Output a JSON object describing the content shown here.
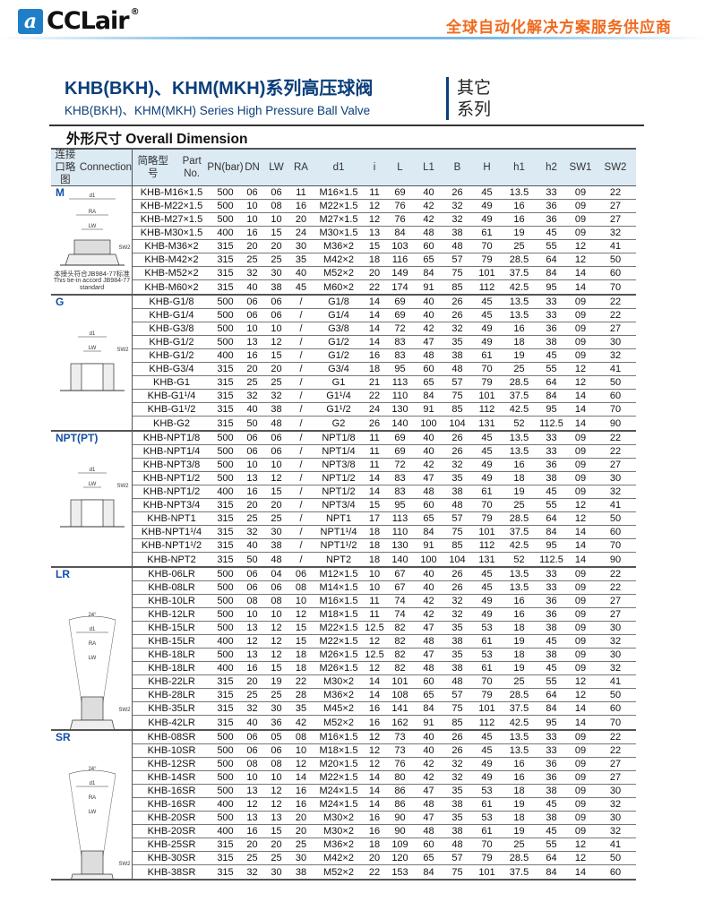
{
  "header": {
    "logo_mark": "a",
    "logo_text": "CCLair",
    "logo_reg": "®",
    "slogan": "全球自动化解决方案服务供应商"
  },
  "title": "KHB(BKH)、KHM(MKH)系列高压球阀",
  "subtitle": "KHB(BKH)、KHM(MKH) Series High Pressure Ball Valve",
  "series_tag": [
    "其它",
    "系列"
  ],
  "section_title": "外形尺寸 Overall Dimension",
  "columns": [
    [
      "连接口略图",
      "Connection"
    ],
    [
      "简略型号",
      "Part No."
    ],
    [
      "PN",
      "(bar)"
    ],
    [
      "DN"
    ],
    [
      "LW"
    ],
    [
      "RA"
    ],
    [
      "d1"
    ],
    [
      "i"
    ],
    [
      "L"
    ],
    [
      "L1"
    ],
    [
      "B"
    ],
    [
      "H"
    ],
    [
      "h1"
    ],
    [
      "h2"
    ],
    [
      "SW1"
    ],
    [
      "SW2"
    ]
  ],
  "groups": [
    {
      "label": "M",
      "note": [
        "本接头符合JB984-77标准",
        "This tie-in accord JB984-77",
        "standard"
      ],
      "rows": [
        [
          "KHB-M16×1.5",
          "500",
          "06",
          "06",
          "11",
          "M16×1.5",
          "11",
          "69",
          "40",
          "26",
          "45",
          "13.5",
          "33",
          "09",
          "22"
        ],
        [
          "KHB-M22×1.5",
          "500",
          "10",
          "08",
          "16",
          "M22×1.5",
          "12",
          "76",
          "42",
          "32",
          "49",
          "16",
          "36",
          "09",
          "27"
        ],
        [
          "KHB-M27×1.5",
          "500",
          "10",
          "10",
          "20",
          "M27×1.5",
          "12",
          "76",
          "42",
          "32",
          "49",
          "16",
          "36",
          "09",
          "27"
        ],
        [
          "KHB-M30×1.5",
          "400",
          "16",
          "15",
          "24",
          "M30×1.5",
          "13",
          "84",
          "48",
          "38",
          "61",
          "19",
          "45",
          "09",
          "32"
        ],
        [
          "KHB-M36×2",
          "315",
          "20",
          "20",
          "30",
          "M36×2",
          "15",
          "103",
          "60",
          "48",
          "70",
          "25",
          "55",
          "12",
          "41"
        ],
        [
          "KHB-M42×2",
          "315",
          "25",
          "25",
          "35",
          "M42×2",
          "18",
          "116",
          "65",
          "57",
          "79",
          "28.5",
          "64",
          "12",
          "50"
        ],
        [
          "KHB-M52×2",
          "315",
          "32",
          "30",
          "40",
          "M52×2",
          "20",
          "149",
          "84",
          "75",
          "101",
          "37.5",
          "84",
          "14",
          "60"
        ],
        [
          "KHB-M60×2",
          "315",
          "40",
          "38",
          "45",
          "M60×2",
          "22",
          "174",
          "91",
          "85",
          "112",
          "42.5",
          "95",
          "14",
          "70"
        ]
      ]
    },
    {
      "label": "G",
      "rows": [
        [
          "KHB-G1/8",
          "500",
          "06",
          "06",
          "/",
          "G1/8",
          "14",
          "69",
          "40",
          "26",
          "45",
          "13.5",
          "33",
          "09",
          "22"
        ],
        [
          "KHB-G1/4",
          "500",
          "06",
          "06",
          "/",
          "G1/4",
          "14",
          "69",
          "40",
          "26",
          "45",
          "13.5",
          "33",
          "09",
          "22"
        ],
        [
          "KHB-G3/8",
          "500",
          "10",
          "10",
          "/",
          "G3/8",
          "14",
          "72",
          "42",
          "32",
          "49",
          "16",
          "36",
          "09",
          "27"
        ],
        [
          "KHB-G1/2",
          "500",
          "13",
          "12",
          "/",
          "G1/2",
          "14",
          "83",
          "47",
          "35",
          "49",
          "18",
          "38",
          "09",
          "30"
        ],
        [
          "KHB-G1/2",
          "400",
          "16",
          "15",
          "/",
          "G1/2",
          "16",
          "83",
          "48",
          "38",
          "61",
          "19",
          "45",
          "09",
          "32"
        ],
        [
          "KHB-G3/4",
          "315",
          "20",
          "20",
          "/",
          "G3/4",
          "18",
          "95",
          "60",
          "48",
          "70",
          "25",
          "55",
          "12",
          "41"
        ],
        [
          "KHB-G1",
          "315",
          "25",
          "25",
          "/",
          "G1",
          "21",
          "113",
          "65",
          "57",
          "79",
          "28.5",
          "64",
          "12",
          "50"
        ],
        [
          "KHB-G1¹/4",
          "315",
          "32",
          "32",
          "/",
          "G1¹/4",
          "22",
          "110",
          "84",
          "75",
          "101",
          "37.5",
          "84",
          "14",
          "60"
        ],
        [
          "KHB-G1¹/2",
          "315",
          "40",
          "38",
          "/",
          "G1¹/2",
          "24",
          "130",
          "91",
          "85",
          "112",
          "42.5",
          "95",
          "14",
          "70"
        ],
        [
          "KHB-G2",
          "315",
          "50",
          "48",
          "/",
          "G2",
          "26",
          "140",
          "100",
          "104",
          "131",
          "52",
          "112.5",
          "14",
          "90"
        ]
      ]
    },
    {
      "label": "NPT(PT)",
      "rows": [
        [
          "KHB-NPT1/8",
          "500",
          "06",
          "06",
          "/",
          "NPT1/8",
          "11",
          "69",
          "40",
          "26",
          "45",
          "13.5",
          "33",
          "09",
          "22"
        ],
        [
          "KHB-NPT1/4",
          "500",
          "06",
          "06",
          "/",
          "NPT1/4",
          "11",
          "69",
          "40",
          "26",
          "45",
          "13.5",
          "33",
          "09",
          "22"
        ],
        [
          "KHB-NPT3/8",
          "500",
          "10",
          "10",
          "/",
          "NPT3/8",
          "11",
          "72",
          "42",
          "32",
          "49",
          "16",
          "36",
          "09",
          "27"
        ],
        [
          "KHB-NPT1/2",
          "500",
          "13",
          "12",
          "/",
          "NPT1/2",
          "14",
          "83",
          "47",
          "35",
          "49",
          "18",
          "38",
          "09",
          "30"
        ],
        [
          "KHB-NPT1/2",
          "400",
          "16",
          "15",
          "/",
          "NPT1/2",
          "14",
          "83",
          "48",
          "38",
          "61",
          "19",
          "45",
          "09",
          "32"
        ],
        [
          "KHB-NPT3/4",
          "315",
          "20",
          "20",
          "/",
          "NPT3/4",
          "15",
          "95",
          "60",
          "48",
          "70",
          "25",
          "55",
          "12",
          "41"
        ],
        [
          "KHB-NPT1",
          "315",
          "25",
          "25",
          "/",
          "NPT1",
          "17",
          "113",
          "65",
          "57",
          "79",
          "28.5",
          "64",
          "12",
          "50"
        ],
        [
          "KHB-NPT1¹/4",
          "315",
          "32",
          "30",
          "/",
          "NPT1¹/4",
          "18",
          "110",
          "84",
          "75",
          "101",
          "37.5",
          "84",
          "14",
          "60"
        ],
        [
          "KHB-NPT1¹/2",
          "315",
          "40",
          "38",
          "/",
          "NPT1¹/2",
          "18",
          "130",
          "91",
          "85",
          "112",
          "42.5",
          "95",
          "14",
          "70"
        ],
        [
          "KHB-NPT2",
          "315",
          "50",
          "48",
          "/",
          "NPT2",
          "18",
          "140",
          "100",
          "104",
          "131",
          "52",
          "112.5",
          "14",
          "90"
        ]
      ]
    },
    {
      "label": "LR",
      "rows": [
        [
          "KHB-06LR",
          "500",
          "06",
          "04",
          "06",
          "M12×1.5",
          "10",
          "67",
          "40",
          "26",
          "45",
          "13.5",
          "33",
          "09",
          "22"
        ],
        [
          "KHB-08LR",
          "500",
          "06",
          "06",
          "08",
          "M14×1.5",
          "10",
          "67",
          "40",
          "26",
          "45",
          "13.5",
          "33",
          "09",
          "22"
        ],
        [
          "KHB-10LR",
          "500",
          "08",
          "08",
          "10",
          "M16×1.5",
          "11",
          "74",
          "42",
          "32",
          "49",
          "16",
          "36",
          "09",
          "27"
        ],
        [
          "KHB-12LR",
          "500",
          "10",
          "10",
          "12",
          "M18×1.5",
          "11",
          "74",
          "42",
          "32",
          "49",
          "16",
          "36",
          "09",
          "27"
        ],
        [
          "KHB-15LR",
          "500",
          "13",
          "12",
          "15",
          "M22×1.5",
          "12.5",
          "82",
          "47",
          "35",
          "53",
          "18",
          "38",
          "09",
          "30"
        ],
        [
          "KHB-15LR",
          "400",
          "12",
          "12",
          "15",
          "M22×1.5",
          "12",
          "82",
          "48",
          "38",
          "61",
          "19",
          "45",
          "09",
          "32"
        ],
        [
          "KHB-18LR",
          "500",
          "13",
          "12",
          "18",
          "M26×1.5",
          "12.5",
          "82",
          "47",
          "35",
          "53",
          "18",
          "38",
          "09",
          "30"
        ],
        [
          "KHB-18LR",
          "400",
          "16",
          "15",
          "18",
          "M26×1.5",
          "12",
          "82",
          "48",
          "38",
          "61",
          "19",
          "45",
          "09",
          "32"
        ],
        [
          "KHB-22LR",
          "315",
          "20",
          "19",
          "22",
          "M30×2",
          "14",
          "101",
          "60",
          "48",
          "70",
          "25",
          "55",
          "12",
          "41"
        ],
        [
          "KHB-28LR",
          "315",
          "25",
          "25",
          "28",
          "M36×2",
          "14",
          "108",
          "65",
          "57",
          "79",
          "28.5",
          "64",
          "12",
          "50"
        ],
        [
          "KHB-35LR",
          "315",
          "32",
          "30",
          "35",
          "M45×2",
          "16",
          "141",
          "84",
          "75",
          "101",
          "37.5",
          "84",
          "14",
          "60"
        ],
        [
          "KHB-42LR",
          "315",
          "40",
          "36",
          "42",
          "M52×2",
          "16",
          "162",
          "91",
          "85",
          "112",
          "42.5",
          "95",
          "14",
          "70"
        ]
      ]
    },
    {
      "label": "SR",
      "rows": [
        [
          "KHB-08SR",
          "500",
          "06",
          "05",
          "08",
          "M16×1.5",
          "12",
          "73",
          "40",
          "26",
          "45",
          "13.5",
          "33",
          "09",
          "22"
        ],
        [
          "KHB-10SR",
          "500",
          "06",
          "06",
          "10",
          "M18×1.5",
          "12",
          "73",
          "40",
          "26",
          "45",
          "13.5",
          "33",
          "09",
          "22"
        ],
        [
          "KHB-12SR",
          "500",
          "08",
          "08",
          "12",
          "M20×1.5",
          "12",
          "76",
          "42",
          "32",
          "49",
          "16",
          "36",
          "09",
          "27"
        ],
        [
          "KHB-14SR",
          "500",
          "10",
          "10",
          "14",
          "M22×1.5",
          "14",
          "80",
          "42",
          "32",
          "49",
          "16",
          "36",
          "09",
          "27"
        ],
        [
          "KHB-16SR",
          "500",
          "13",
          "12",
          "16",
          "M24×1.5",
          "14",
          "86",
          "47",
          "35",
          "53",
          "18",
          "38",
          "09",
          "30"
        ],
        [
          "KHB-16SR",
          "400",
          "12",
          "12",
          "16",
          "M24×1.5",
          "14",
          "86",
          "48",
          "38",
          "61",
          "19",
          "45",
          "09",
          "32"
        ],
        [
          "KHB-20SR",
          "500",
          "13",
          "13",
          "20",
          "M30×2",
          "16",
          "90",
          "47",
          "35",
          "53",
          "18",
          "38",
          "09",
          "30"
        ],
        [
          "KHB-20SR",
          "400",
          "16",
          "15",
          "20",
          "M30×2",
          "16",
          "90",
          "48",
          "38",
          "61",
          "19",
          "45",
          "09",
          "32"
        ],
        [
          "KHB-25SR",
          "315",
          "20",
          "20",
          "25",
          "M36×2",
          "18",
          "109",
          "60",
          "48",
          "70",
          "25",
          "55",
          "12",
          "41"
        ],
        [
          "KHB-30SR",
          "315",
          "25",
          "25",
          "30",
          "M42×2",
          "20",
          "120",
          "65",
          "57",
          "79",
          "28.5",
          "64",
          "12",
          "50"
        ],
        [
          "KHB-38SR",
          "315",
          "32",
          "30",
          "38",
          "M52×2",
          "22",
          "153",
          "84",
          "75",
          "101",
          "37.5",
          "84",
          "14",
          "60"
        ]
      ]
    }
  ],
  "diagram_labels": {
    "d1": "d1",
    "ra": "RA",
    "lw": "LW",
    "sw2": "SW2",
    "angle": "24°"
  },
  "colors": {
    "title": "#0b3f7a",
    "slogan": "#f06a1d",
    "group_label": "#1250a8",
    "header_bg": "#dceaf4"
  }
}
